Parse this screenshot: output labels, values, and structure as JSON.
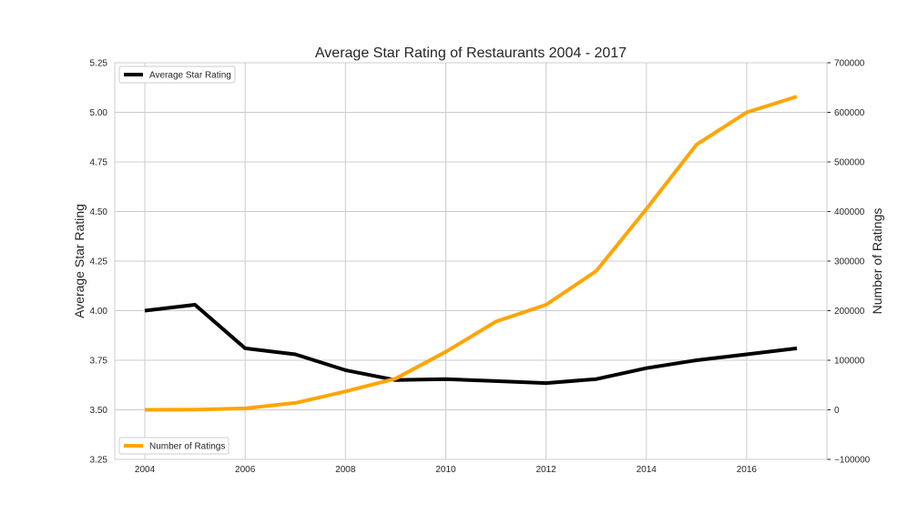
{
  "chart_data": {
    "type": "line",
    "title": "Average Star Rating of Restaurants 2004 - 2017",
    "xlabel": "",
    "x": [
      2004,
      2005,
      2006,
      2007,
      2008,
      2009,
      2010,
      2011,
      2012,
      2013,
      2014,
      2015,
      2016,
      2017
    ],
    "x_ticks": [
      2004,
      2006,
      2008,
      2010,
      2012,
      2014,
      2016
    ],
    "xlim": [
      2003.4,
      2017.6
    ],
    "grid": true,
    "left_axis": {
      "label": "Average Star Rating",
      "ylim": [
        3.25,
        5.25
      ],
      "ticks": [
        "3.25",
        "3.50",
        "3.75",
        "4.00",
        "4.25",
        "4.50",
        "4.75",
        "5.00",
        "5.25"
      ]
    },
    "right_axis": {
      "label": "Number of Ratings",
      "ylim": [
        -100000,
        700000
      ],
      "ticks": [
        "−100000",
        "0",
        "100000",
        "200000",
        "300000",
        "400000",
        "500000",
        "600000",
        "700000"
      ]
    },
    "series": [
      {
        "name": "Average Star Rating",
        "axis": "left",
        "color": "#000000",
        "values": [
          4.0,
          4.03,
          3.81,
          3.78,
          3.7,
          3.65,
          3.655,
          3.645,
          3.635,
          3.655,
          3.71,
          3.75,
          3.78,
          3.81
        ],
        "legend_position": "upper left"
      },
      {
        "name": "Number of Ratings",
        "axis": "right",
        "color": "#FFA500",
        "values": [
          0,
          500,
          3000,
          14000,
          37000,
          63000,
          117000,
          178000,
          212000,
          280000,
          405000,
          535000,
          600000,
          632000
        ],
        "legend_position": "lower left"
      }
    ]
  }
}
